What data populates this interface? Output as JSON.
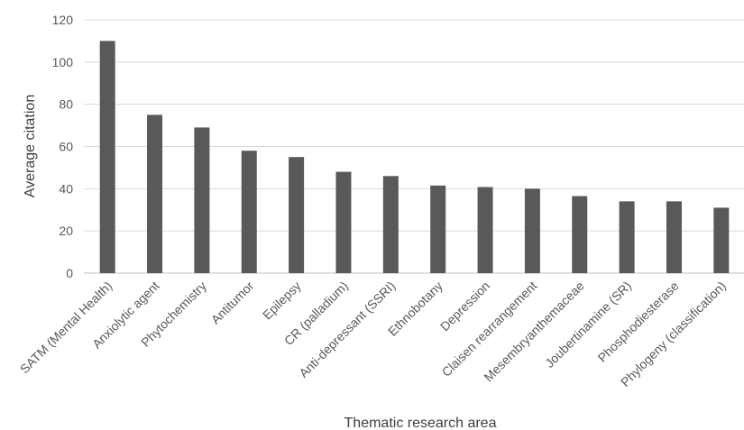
{
  "chart_data": {
    "type": "bar",
    "title": "",
    "xlabel": "Thematic research area",
    "ylabel": "Average citation",
    "ylim": [
      0,
      120
    ],
    "yticks": [
      0,
      20,
      40,
      60,
      80,
      100,
      120
    ],
    "grid": true,
    "legend": "none",
    "categories": [
      "SATM (Mental Health)",
      "Anxiolytic agent",
      "Phytochemistry",
      "Antitumor",
      "Epilepsy",
      "CR (palladium)",
      "Anti-depressant (SSRI)",
      "Ethnobotany",
      "Depression",
      "Claisen rearrangement",
      "Mesembryanthemaceae",
      "Joubertinamine (SR)",
      "Phosphodiesterase",
      "Phylogeny (classification)"
    ],
    "values": [
      110,
      75,
      69,
      58,
      55,
      48,
      46,
      41.5,
      40.8,
      40,
      36.5,
      34,
      34,
      31
    ],
    "colors": {
      "bar": "#595959",
      "grid": "#d9d9d9",
      "text": "#595959"
    }
  }
}
